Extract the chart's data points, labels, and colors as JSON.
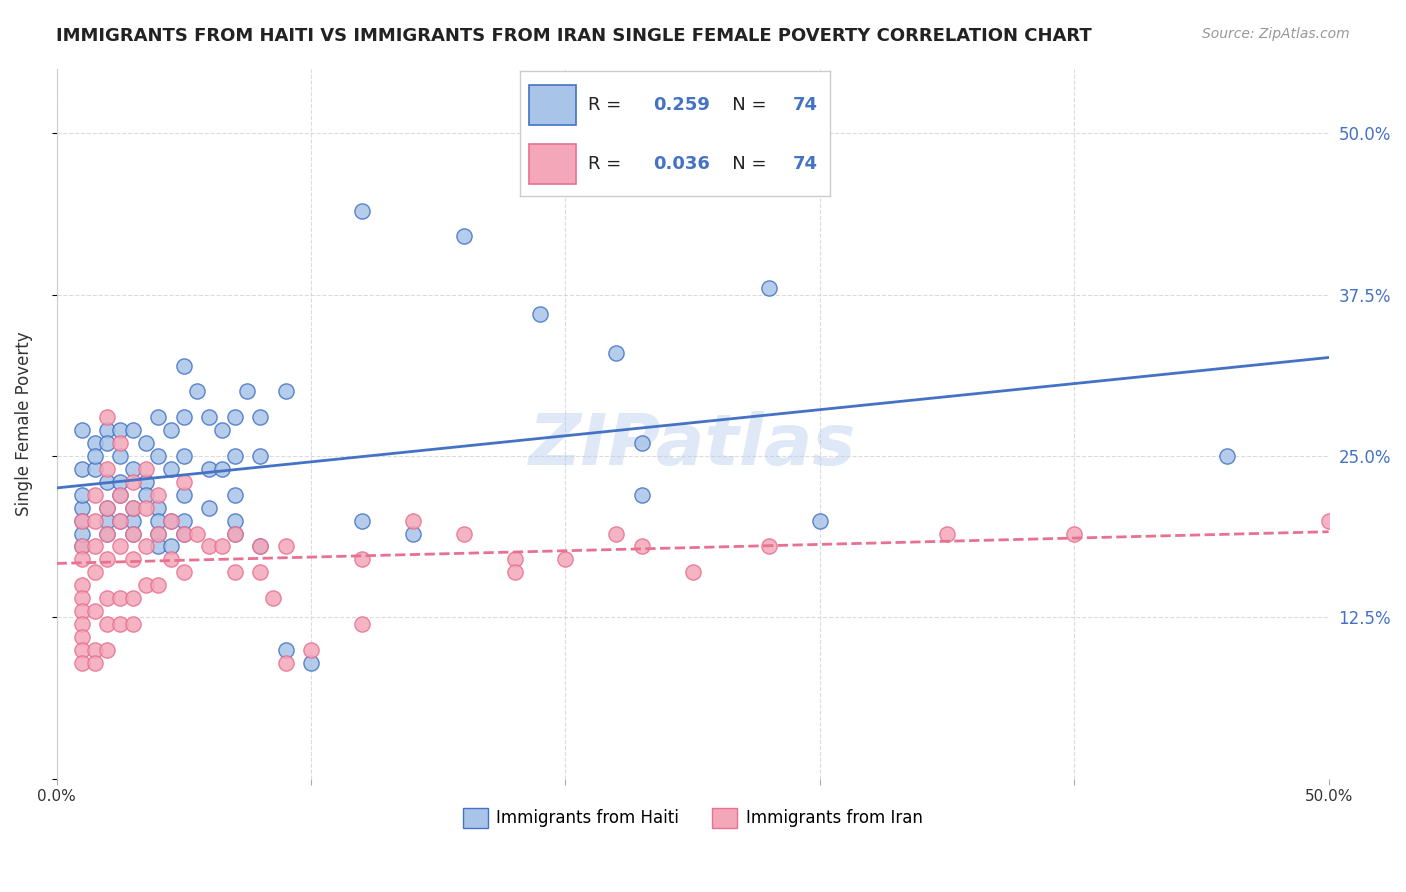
{
  "title": "IMMIGRANTS FROM HAITI VS IMMIGRANTS FROM IRAN SINGLE FEMALE POVERTY CORRELATION CHART",
  "source": "Source: ZipAtlas.com",
  "ylabel": "Single Female Poverty",
  "xlim": [
    0.0,
    0.5
  ],
  "ylim": [
    0.0,
    0.55
  ],
  "haiti_R": "0.259",
  "haiti_N": "74",
  "iran_R": "0.036",
  "iran_N": "74",
  "haiti_color": "#a8c4e8",
  "iran_color": "#f4a7b9",
  "haiti_line_color": "#4472c4",
  "iran_line_color": "#e87090",
  "watermark": "ZIPatlas",
  "background_color": "#ffffff",
  "grid_color": "#cccccc",
  "legend_label_haiti": "Immigrants from Haiti",
  "legend_label_iran": "Immigrants from Iran",
  "haiti_scatter": [
    [
      0.01,
      0.24
    ],
    [
      0.01,
      0.27
    ],
    [
      0.01,
      0.21
    ],
    [
      0.01,
      0.2
    ],
    [
      0.01,
      0.18
    ],
    [
      0.01,
      0.22
    ],
    [
      0.01,
      0.19
    ],
    [
      0.015,
      0.24
    ],
    [
      0.015,
      0.26
    ],
    [
      0.015,
      0.25
    ],
    [
      0.02,
      0.27
    ],
    [
      0.02,
      0.23
    ],
    [
      0.02,
      0.2
    ],
    [
      0.02,
      0.21
    ],
    [
      0.02,
      0.26
    ],
    [
      0.02,
      0.19
    ],
    [
      0.025,
      0.27
    ],
    [
      0.025,
      0.25
    ],
    [
      0.025,
      0.22
    ],
    [
      0.025,
      0.23
    ],
    [
      0.025,
      0.2
    ],
    [
      0.03,
      0.27
    ],
    [
      0.03,
      0.24
    ],
    [
      0.03,
      0.2
    ],
    [
      0.03,
      0.19
    ],
    [
      0.03,
      0.21
    ],
    [
      0.035,
      0.26
    ],
    [
      0.035,
      0.23
    ],
    [
      0.035,
      0.22
    ],
    [
      0.04,
      0.28
    ],
    [
      0.04,
      0.25
    ],
    [
      0.04,
      0.21
    ],
    [
      0.04,
      0.2
    ],
    [
      0.04,
      0.19
    ],
    [
      0.04,
      0.18
    ],
    [
      0.045,
      0.27
    ],
    [
      0.045,
      0.24
    ],
    [
      0.045,
      0.2
    ],
    [
      0.045,
      0.18
    ],
    [
      0.05,
      0.32
    ],
    [
      0.05,
      0.28
    ],
    [
      0.05,
      0.25
    ],
    [
      0.05,
      0.22
    ],
    [
      0.05,
      0.2
    ],
    [
      0.05,
      0.19
    ],
    [
      0.055,
      0.3
    ],
    [
      0.06,
      0.28
    ],
    [
      0.06,
      0.24
    ],
    [
      0.06,
      0.21
    ],
    [
      0.065,
      0.27
    ],
    [
      0.065,
      0.24
    ],
    [
      0.07,
      0.28
    ],
    [
      0.07,
      0.25
    ],
    [
      0.07,
      0.22
    ],
    [
      0.07,
      0.2
    ],
    [
      0.07,
      0.19
    ],
    [
      0.075,
      0.3
    ],
    [
      0.08,
      0.28
    ],
    [
      0.08,
      0.25
    ],
    [
      0.08,
      0.18
    ],
    [
      0.09,
      0.3
    ],
    [
      0.09,
      0.1
    ],
    [
      0.1,
      0.09
    ],
    [
      0.12,
      0.44
    ],
    [
      0.12,
      0.2
    ],
    [
      0.14,
      0.19
    ],
    [
      0.16,
      0.42
    ],
    [
      0.19,
      0.36
    ],
    [
      0.22,
      0.33
    ],
    [
      0.23,
      0.26
    ],
    [
      0.23,
      0.22
    ],
    [
      0.28,
      0.38
    ],
    [
      0.3,
      0.2
    ],
    [
      0.46,
      0.25
    ]
  ],
  "iran_scatter": [
    [
      0.01,
      0.2
    ],
    [
      0.01,
      0.18
    ],
    [
      0.01,
      0.17
    ],
    [
      0.01,
      0.15
    ],
    [
      0.01,
      0.14
    ],
    [
      0.01,
      0.13
    ],
    [
      0.01,
      0.12
    ],
    [
      0.01,
      0.11
    ],
    [
      0.01,
      0.1
    ],
    [
      0.01,
      0.09
    ],
    [
      0.015,
      0.22
    ],
    [
      0.015,
      0.2
    ],
    [
      0.015,
      0.18
    ],
    [
      0.015,
      0.16
    ],
    [
      0.015,
      0.13
    ],
    [
      0.015,
      0.1
    ],
    [
      0.015,
      0.09
    ],
    [
      0.02,
      0.28
    ],
    [
      0.02,
      0.24
    ],
    [
      0.02,
      0.21
    ],
    [
      0.02,
      0.19
    ],
    [
      0.02,
      0.17
    ],
    [
      0.02,
      0.14
    ],
    [
      0.02,
      0.12
    ],
    [
      0.02,
      0.1
    ],
    [
      0.025,
      0.26
    ],
    [
      0.025,
      0.22
    ],
    [
      0.025,
      0.2
    ],
    [
      0.025,
      0.18
    ],
    [
      0.025,
      0.14
    ],
    [
      0.025,
      0.12
    ],
    [
      0.03,
      0.23
    ],
    [
      0.03,
      0.21
    ],
    [
      0.03,
      0.19
    ],
    [
      0.03,
      0.17
    ],
    [
      0.03,
      0.14
    ],
    [
      0.03,
      0.12
    ],
    [
      0.035,
      0.24
    ],
    [
      0.035,
      0.21
    ],
    [
      0.035,
      0.18
    ],
    [
      0.035,
      0.15
    ],
    [
      0.04,
      0.22
    ],
    [
      0.04,
      0.19
    ],
    [
      0.04,
      0.15
    ],
    [
      0.045,
      0.2
    ],
    [
      0.045,
      0.17
    ],
    [
      0.05,
      0.23
    ],
    [
      0.05,
      0.19
    ],
    [
      0.05,
      0.16
    ],
    [
      0.055,
      0.19
    ],
    [
      0.06,
      0.18
    ],
    [
      0.065,
      0.18
    ],
    [
      0.07,
      0.19
    ],
    [
      0.07,
      0.16
    ],
    [
      0.08,
      0.18
    ],
    [
      0.08,
      0.16
    ],
    [
      0.085,
      0.14
    ],
    [
      0.09,
      0.18
    ],
    [
      0.09,
      0.09
    ],
    [
      0.1,
      0.1
    ],
    [
      0.12,
      0.17
    ],
    [
      0.12,
      0.12
    ],
    [
      0.14,
      0.2
    ],
    [
      0.16,
      0.19
    ],
    [
      0.18,
      0.17
    ],
    [
      0.18,
      0.16
    ],
    [
      0.2,
      0.17
    ],
    [
      0.22,
      0.19
    ],
    [
      0.23,
      0.18
    ],
    [
      0.25,
      0.16
    ],
    [
      0.28,
      0.18
    ],
    [
      0.35,
      0.19
    ],
    [
      0.4,
      0.19
    ],
    [
      0.5,
      0.2
    ]
  ]
}
